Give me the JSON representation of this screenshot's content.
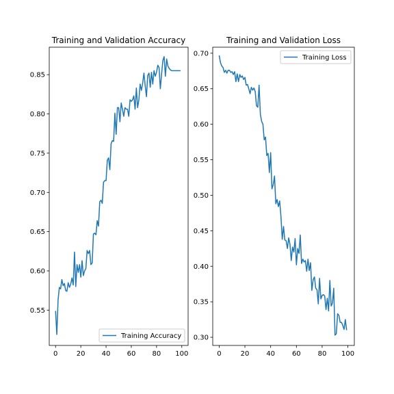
{
  "chart_data": [
    {
      "type": "line",
      "title": "Training and Validation Accuracy",
      "xlabel": "",
      "ylabel": "",
      "xlim": [
        -5,
        105
      ],
      "ylim": [
        0.505,
        0.885
      ],
      "xticks": [
        0,
        20,
        40,
        60,
        80,
        100
      ],
      "yticks": [
        0.55,
        0.6,
        0.65,
        0.7,
        0.75,
        0.8,
        0.85
      ],
      "ytick_decimals": 2,
      "grid": false,
      "legend": "lower-right",
      "series": [
        {
          "name": "Training Accuracy",
          "color": "#1f77b4",
          "x": [
            0,
            1,
            2,
            3,
            4,
            5,
            6,
            7,
            8,
            9,
            10,
            11,
            12,
            13,
            14,
            15,
            16,
            17,
            18,
            19,
            20,
            21,
            22,
            23,
            24,
            25,
            26,
            27,
            28,
            29,
            30,
            31,
            32,
            33,
            34,
            35,
            36,
            37,
            38,
            39,
            40,
            41,
            42,
            43,
            44,
            45,
            46,
            47,
            48,
            49,
            50,
            51,
            52,
            53,
            54,
            55,
            56,
            57,
            58,
            59,
            60,
            61,
            62,
            63,
            64,
            65,
            66,
            67,
            68,
            69,
            70,
            71,
            72,
            73,
            74,
            75,
            76,
            77,
            78,
            79,
            80,
            81,
            82,
            83,
            84,
            85,
            86,
            87,
            88,
            89,
            90,
            91,
            92,
            93,
            94,
            95,
            96,
            97,
            98,
            99
          ],
          "y": [
            0.549,
            0.519,
            0.563,
            0.579,
            0.577,
            0.589,
            0.581,
            0.584,
            0.575,
            0.574,
            0.585,
            0.579,
            0.583,
            0.591,
            0.582,
            0.624,
            0.58,
            0.608,
            0.598,
            0.608,
            0.592,
            0.613,
            0.594,
            0.6,
            0.603,
            0.626,
            0.622,
            0.626,
            0.608,
            0.61,
            0.647,
            0.648,
            0.646,
            0.664,
            0.657,
            0.688,
            0.69,
            0.686,
            0.713,
            0.715,
            0.715,
            0.741,
            0.744,
            0.729,
            0.762,
            0.766,
            0.765,
            0.801,
            0.774,
            0.808,
            0.808,
            0.79,
            0.814,
            0.806,
            0.797,
            0.808,
            0.806,
            0.806,
            0.797,
            0.818,
            0.816,
            0.818,
            0.823,
            0.806,
            0.833,
            0.808,
            0.818,
            0.838,
            0.83,
            0.839,
            0.852,
            0.836,
            0.822,
            0.849,
            0.852,
            0.834,
            0.853,
            0.838,
            0.855,
            0.848,
            0.853,
            0.862,
            0.859,
            0.832,
            0.851,
            0.868,
            0.873,
            0.848,
            0.87,
            0.861,
            0.858,
            0.856,
            0.855,
            0.855,
            0.855,
            0.855,
            0.855,
            0.855,
            0.855,
            0.855
          ]
        }
      ]
    },
    {
      "type": "line",
      "title": "Training and Validation Loss",
      "xlabel": "",
      "ylabel": "",
      "xlim": [
        -5,
        105
      ],
      "ylim": [
        0.2885,
        0.7085
      ],
      "xticks": [
        0,
        20,
        40,
        60,
        80,
        100
      ],
      "yticks": [
        0.3,
        0.35,
        0.4,
        0.45,
        0.5,
        0.55,
        0.6,
        0.65,
        0.7
      ],
      "ytick_decimals": 2,
      "grid": false,
      "legend": "upper-right",
      "series": [
        {
          "name": "Training Loss",
          "color": "#1f77b4",
          "x": [
            0,
            1,
            2,
            3,
            4,
            5,
            6,
            7,
            8,
            9,
            10,
            11,
            12,
            13,
            14,
            15,
            16,
            17,
            18,
            19,
            20,
            21,
            22,
            23,
            24,
            25,
            26,
            27,
            28,
            29,
            30,
            31,
            32,
            33,
            34,
            35,
            36,
            37,
            38,
            39,
            40,
            41,
            42,
            43,
            44,
            45,
            46,
            47,
            48,
            49,
            50,
            51,
            52,
            53,
            54,
            55,
            56,
            57,
            58,
            59,
            60,
            61,
            62,
            63,
            64,
            65,
            66,
            67,
            68,
            69,
            70,
            71,
            72,
            73,
            74,
            75,
            76,
            77,
            78,
            79,
            80,
            81,
            82,
            83,
            84,
            85,
            86,
            87,
            88,
            89,
            90,
            91,
            92,
            93,
            94,
            95,
            96,
            97,
            98,
            99
          ],
          "y": [
            0.697,
            0.687,
            0.682,
            0.68,
            0.673,
            0.676,
            0.672,
            0.676,
            0.676,
            0.673,
            0.674,
            0.67,
            0.674,
            0.66,
            0.671,
            0.66,
            0.67,
            0.666,
            0.668,
            0.663,
            0.666,
            0.655,
            0.656,
            0.65,
            0.643,
            0.652,
            0.648,
            0.651,
            0.646,
            0.626,
            0.624,
            0.655,
            0.614,
            0.604,
            0.6,
            0.578,
            0.582,
            0.556,
            0.559,
            0.532,
            0.56,
            0.509,
            0.515,
            0.527,
            0.488,
            0.494,
            0.484,
            0.492,
            0.47,
            0.438,
            0.456,
            0.437,
            0.436,
            0.425,
            0.44,
            0.431,
            0.408,
            0.427,
            0.42,
            0.439,
            0.402,
            0.425,
            0.418,
            0.444,
            0.404,
            0.41,
            0.406,
            0.408,
            0.393,
            0.41,
            0.394,
            0.405,
            0.366,
            0.381,
            0.385,
            0.369,
            0.367,
            0.347,
            0.383,
            0.354,
            0.359,
            0.36,
            0.358,
            0.339,
            0.355,
            0.337,
            0.38,
            0.344,
            0.348,
            0.369,
            0.303,
            0.305,
            0.333,
            0.331,
            0.321,
            0.321,
            0.317,
            0.311,
            0.325,
            0.31
          ]
        }
      ]
    }
  ]
}
